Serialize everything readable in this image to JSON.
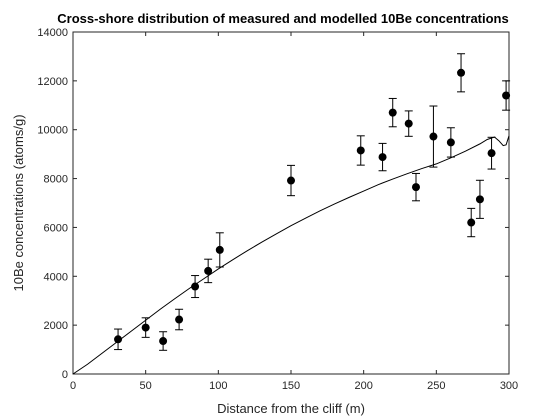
{
  "chart_data": {
    "type": "scatter",
    "title": "Cross-shore distribution of measured and modelled 10Be concentrations",
    "xlabel": "Distance from the cliff (m)",
    "ylabel": "10Be concentrations (atoms/g)",
    "xlim": [
      0,
      300
    ],
    "ylim": [
      0,
      14000
    ],
    "xticks": [
      0,
      50,
      100,
      150,
      200,
      250,
      300
    ],
    "yticks": [
      0,
      2000,
      4000,
      6000,
      8000,
      10000,
      12000,
      14000
    ],
    "x_tick_labels": [
      "0",
      "50",
      "100",
      "150",
      "200",
      "250",
      "300"
    ],
    "y_tick_labels": [
      "0",
      "2000",
      "4000",
      "6000",
      "8000",
      "10000",
      "12000",
      "14000"
    ],
    "grid": false,
    "colors": {
      "marker": "#000000",
      "line": "#000000",
      "axis": "#262626"
    },
    "series": [
      {
        "kind": "points-with-errorbars",
        "points": [
          {
            "x": 31,
            "y": 1420,
            "err": 420
          },
          {
            "x": 50,
            "y": 1900,
            "err": 400
          },
          {
            "x": 62,
            "y": 1350,
            "err": 380
          },
          {
            "x": 73,
            "y": 2230,
            "err": 420
          },
          {
            "x": 84,
            "y": 3580,
            "err": 450
          },
          {
            "x": 93,
            "y": 4220,
            "err": 480
          },
          {
            "x": 101,
            "y": 5080,
            "err": 700
          },
          {
            "x": 150,
            "y": 7920,
            "err": 620
          },
          {
            "x": 198,
            "y": 9150,
            "err": 600
          },
          {
            "x": 213,
            "y": 8880,
            "err": 560
          },
          {
            "x": 220,
            "y": 10700,
            "err": 580
          },
          {
            "x": 231,
            "y": 10250,
            "err": 520
          },
          {
            "x": 236,
            "y": 7650,
            "err": 560
          },
          {
            "x": 248,
            "y": 9720,
            "err": 1250
          },
          {
            "x": 260,
            "y": 9480,
            "err": 600
          },
          {
            "x": 267,
            "y": 12330,
            "err": 780
          },
          {
            "x": 274,
            "y": 6200,
            "err": 580
          },
          {
            "x": 280,
            "y": 7150,
            "err": 780
          },
          {
            "x": 288,
            "y": 9040,
            "err": 650
          },
          {
            "x": 298,
            "y": 11400,
            "err": 600
          }
        ]
      },
      {
        "kind": "model-line",
        "x": [
          0,
          10,
          20,
          30,
          40,
          50,
          60,
          70,
          80,
          90,
          100,
          110,
          120,
          130,
          140,
          150,
          160,
          170,
          180,
          190,
          200,
          210,
          220,
          230,
          240,
          250,
          260,
          270,
          280,
          285,
          290,
          293,
          296,
          298,
          300
        ],
        "y": [
          0,
          400,
          850,
          1300,
          1750,
          2200,
          2650,
          3080,
          3500,
          3900,
          4300,
          4680,
          5050,
          5400,
          5740,
          6070,
          6380,
          6680,
          6960,
          7230,
          7490,
          7750,
          7980,
          8200,
          8410,
          8600,
          8850,
          9120,
          9420,
          9600,
          9700,
          9550,
          9350,
          9380,
          9750
        ]
      }
    ]
  }
}
